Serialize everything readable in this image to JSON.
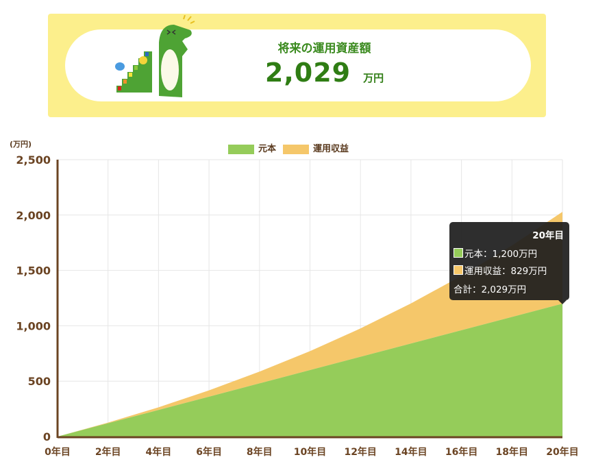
{
  "banner": {
    "title": "将来の運用資産額",
    "value": "2,029",
    "unit": "万円"
  },
  "colors": {
    "principal": "#95cc5a",
    "profit": "#f5c76a",
    "axis": "#6b4423",
    "banner_bg": "#fcef8c",
    "accent": "#2f7d14"
  },
  "tooltip": {
    "title": "20年目",
    "principal": "元本：1,200万円",
    "profit": "運用収益：829万円",
    "total": "合計：2,029万円"
  },
  "chart_data": {
    "type": "area",
    "stacked": true,
    "ylabel": "(万円)",
    "ylim": [
      0,
      2500
    ],
    "yticks": [
      0,
      500,
      1000,
      1500,
      2000,
      2500
    ],
    "ytick_labels": [
      "0",
      "500",
      "1,000",
      "1,500",
      "2,000",
      "2,500"
    ],
    "categories": [
      "0年目",
      "2年目",
      "4年目",
      "6年目",
      "8年目",
      "10年目",
      "12年目",
      "14年目",
      "16年目",
      "18年目",
      "20年目"
    ],
    "series": [
      {
        "name": "元本",
        "color": "#95cc5a",
        "values": [
          0,
          120,
          240,
          360,
          480,
          600,
          720,
          840,
          960,
          1080,
          1200
        ]
      },
      {
        "name": "運用収益",
        "color": "#f5c76a",
        "values": [
          0,
          6,
          24,
          57,
          106,
          171,
          256,
          362,
          491,
          645,
          829
        ]
      }
    ],
    "grid": true,
    "legend": "top-center"
  }
}
